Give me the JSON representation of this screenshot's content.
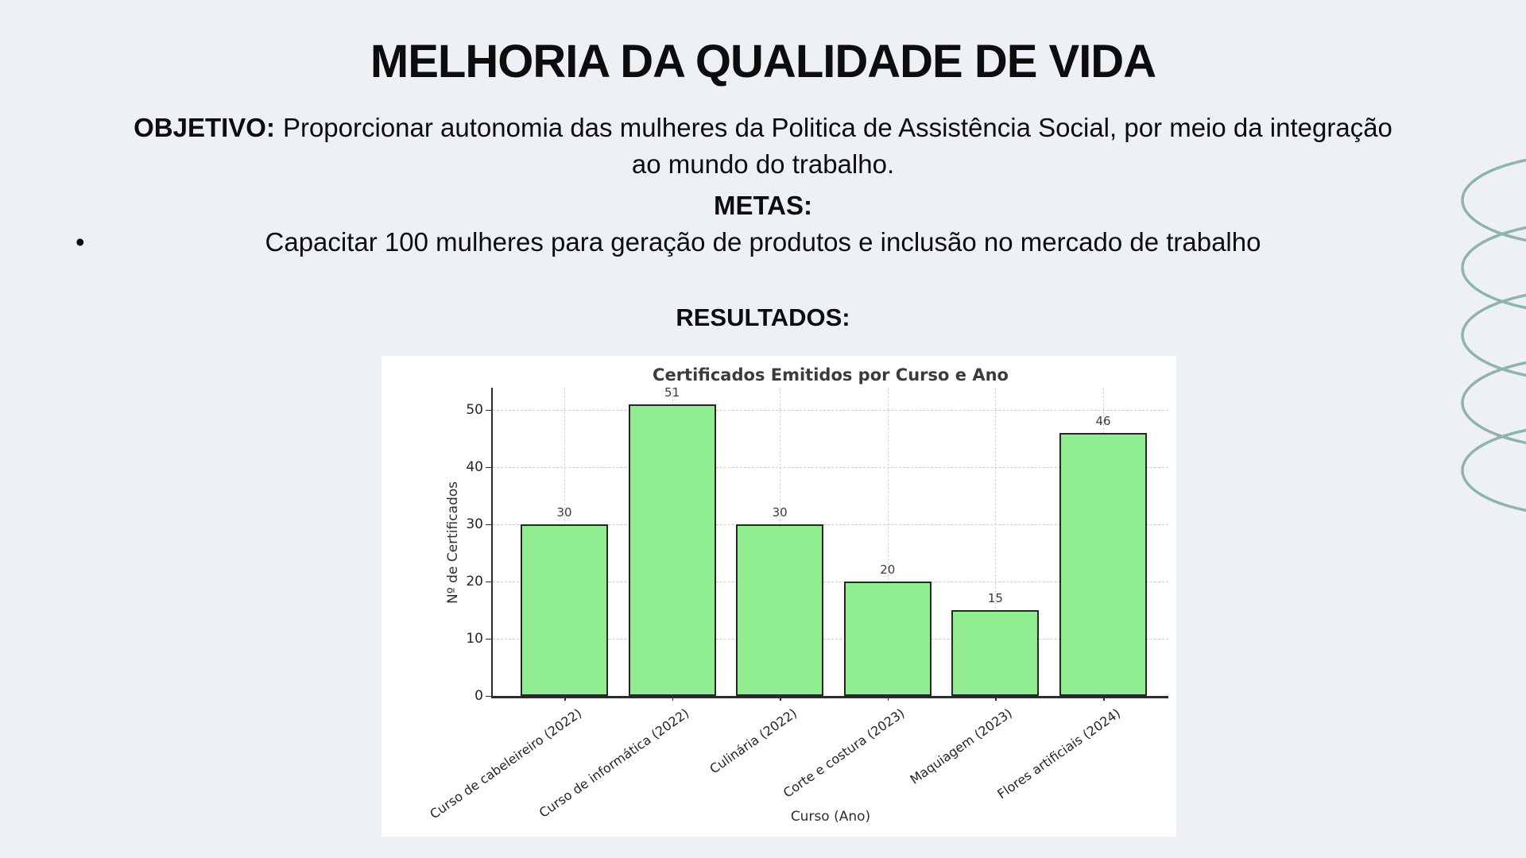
{
  "slide": {
    "title": "MELHORIA DA QUALIDADE DE VIDA",
    "objective_label": "OBJETIVO:",
    "objective_line1": "Proporcionar autonomia das mulheres da Politica de Assistência Social, por meio da integração",
    "objective_line2": "ao mundo do trabalho.",
    "metas_label": "METAS:",
    "bullet_char": "•",
    "meta_bullet": "Capacitar 100 mulheres para geração de produtos e inclusão no mercado de trabalho",
    "results_label": "RESULTADOS:"
  },
  "chart_data": {
    "type": "bar",
    "title": "Certificados Emitidos por Curso e Ano",
    "categories": [
      "Curso de cabeleireiro (2022)",
      "Curso de informática (2022)",
      "Culinária (2022)",
      "Corte e costura (2023)",
      "Maquiagem (2023)",
      "Flores artificiais (2024)"
    ],
    "values": [
      30,
      51,
      30,
      20,
      15,
      46
    ],
    "xlabel": "Curso (Ano)",
    "ylabel": "Nº de Certificados",
    "yticks": [
      0,
      10,
      20,
      30,
      40,
      50
    ],
    "ylim": [
      0,
      53
    ],
    "grid": true,
    "legend": "none",
    "bar_color": "#90ee90",
    "bar_edge_color": "#262626"
  },
  "colors": {
    "background": "#edf1f6",
    "panel": "#ffffff",
    "spiral": "#8fb5a8",
    "text": "#0d0d0d",
    "chart_text": "#3b3b3b"
  }
}
